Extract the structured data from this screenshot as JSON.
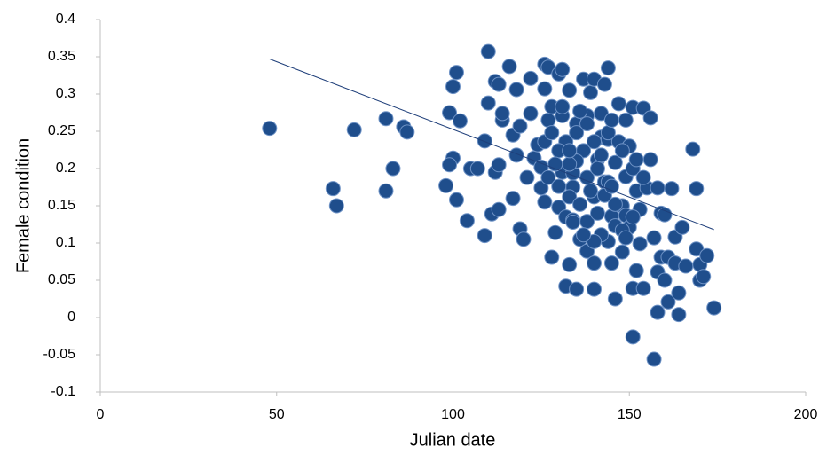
{
  "chart_data": {
    "type": "scatter",
    "x_label": "Julian date",
    "y_label": "Female condition",
    "color": "#1f4e8c",
    "edge_color": "#6f93c6",
    "xlim": [
      0,
      200
    ],
    "xticks": [
      0,
      50,
      100,
      150,
      200
    ],
    "ylim": [
      -0.1,
      0.4
    ],
    "yticks": [
      -0.1,
      -0.05,
      0,
      0.05,
      0.1,
      0.15,
      0.2,
      0.25,
      0.3,
      0.35,
      0.4
    ],
    "grid": false,
    "x": [
      48,
      66,
      67,
      72,
      81,
      83,
      81,
      86,
      87,
      98,
      99,
      100,
      101,
      102,
      100,
      99,
      101,
      104,
      105,
      107,
      109,
      109,
      110,
      110,
      111,
      112,
      112,
      113,
      113,
      114,
      114,
      113,
      116,
      117,
      117,
      118,
      118,
      119,
      119,
      120,
      121,
      122,
      122,
      123,
      124,
      125,
      126,
      126,
      126,
      126,
      127,
      127,
      128,
      128,
      129,
      130,
      130,
      131,
      131,
      131,
      132,
      132,
      132,
      133,
      133,
      134,
      134,
      135,
      135,
      136,
      137,
      137,
      138,
      138,
      138,
      139,
      140,
      140,
      140,
      140,
      141,
      141,
      142,
      142,
      143,
      143,
      144,
      144,
      144,
      145,
      145,
      146,
      146,
      147,
      147,
      148,
      148,
      149,
      149,
      150,
      150,
      151,
      151,
      151,
      151,
      152,
      152,
      153,
      153,
      154,
      154,
      155,
      156,
      156,
      157,
      157,
      158,
      158,
      158,
      159,
      159,
      160,
      160,
      161,
      161,
      162,
      163,
      163,
      164,
      164,
      165,
      166,
      168,
      169,
      169,
      170,
      170,
      171,
      172,
      174,
      125,
      127,
      130,
      133,
      135,
      136,
      138,
      140,
      141,
      143,
      144,
      146,
      148,
      149,
      146,
      145,
      142,
      140,
      134,
      138,
      135,
      133,
      130,
      129,
      128,
      131,
      134,
      137,
      139,
      142,
      144,
      145,
      148,
      149,
      152,
      154,
      151,
      133,
      136
    ],
    "values": [
      0.254,
      0.173,
      0.15,
      0.252,
      0.267,
      0.2,
      0.17,
      0.256,
      0.249,
      0.177,
      0.275,
      0.31,
      0.329,
      0.264,
      0.214,
      0.205,
      0.158,
      0.13,
      0.2,
      0.2,
      0.237,
      0.11,
      0.357,
      0.288,
      0.139,
      0.317,
      0.195,
      0.313,
      0.145,
      0.265,
      0.274,
      0.205,
      0.337,
      0.16,
      0.245,
      0.306,
      0.218,
      0.119,
      0.257,
      0.105,
      0.188,
      0.274,
      0.321,
      0.214,
      0.232,
      0.202,
      0.155,
      0.307,
      0.34,
      0.236,
      0.265,
      0.336,
      0.081,
      0.283,
      0.114,
      0.327,
      0.148,
      0.271,
      0.333,
      0.195,
      0.236,
      0.135,
      0.042,
      0.305,
      0.071,
      0.194,
      0.175,
      0.038,
      0.26,
      0.105,
      0.224,
      0.32,
      0.129,
      0.089,
      0.271,
      0.302,
      0.32,
      0.162,
      0.038,
      0.073,
      0.212,
      0.14,
      0.242,
      0.274,
      0.313,
      0.182,
      0.102,
      0.335,
      0.239,
      0.136,
      0.073,
      0.208,
      0.025,
      0.287,
      0.236,
      0.088,
      0.15,
      0.189,
      0.137,
      0.23,
      0.121,
      0.2,
      -0.026,
      0.039,
      0.282,
      0.17,
      0.063,
      0.099,
      0.145,
      0.281,
      0.039,
      0.174,
      0.268,
      0.212,
      0.107,
      -0.056,
      0.007,
      0.174,
      0.061,
      0.14,
      0.081,
      0.138,
      0.05,
      0.021,
      0.081,
      0.173,
      0.108,
      0.073,
      0.004,
      0.033,
      0.121,
      0.069,
      0.226,
      0.173,
      0.092,
      0.071,
      0.05,
      0.055,
      0.083,
      0.013,
      0.174,
      0.188,
      0.176,
      0.162,
      0.21,
      0.152,
      0.188,
      0.236,
      0.2,
      0.164,
      0.182,
      0.152,
      0.224,
      0.265,
      0.123,
      0.176,
      0.111,
      0.102,
      0.131,
      0.26,
      0.248,
      0.206,
      0.224,
      0.206,
      0.248,
      0.283,
      0.128,
      0.111,
      0.17,
      0.218,
      0.248,
      0.265,
      0.117,
      0.107,
      0.212,
      0.188,
      0.135,
      0.224,
      0.277
    ],
    "trendline": {
      "x": [
        48,
        174
      ],
      "y": [
        0.347,
        0.118
      ],
      "color": "#1f3f7a"
    }
  }
}
